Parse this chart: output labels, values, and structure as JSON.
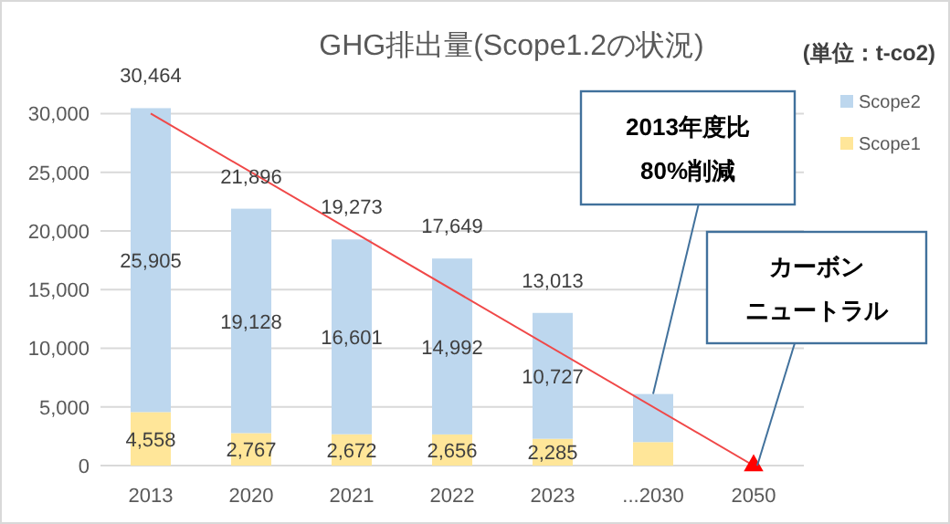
{
  "chart_data": {
    "type": "bar",
    "stacked": true,
    "title": "GHG排出量(Scope1.2の状況)",
    "categories": [
      "2013",
      "2020",
      "2021",
      "2022",
      "2023",
      "...2030",
      "2050"
    ],
    "series": [
      {
        "name": "Scope1",
        "color": "#ffe699",
        "values": [
          4558,
          2767,
          2672,
          2656,
          2285,
          2000,
          null
        ],
        "value_labels": [
          "4,558",
          "2,767",
          "2,672",
          "2,656",
          "2,285",
          null,
          null
        ]
      },
      {
        "name": "Scope2",
        "color": "#bdd7ee",
        "values": [
          25905,
          19128,
          16601,
          14992,
          10727,
          4100,
          null
        ],
        "value_labels": [
          "25,905",
          "19,128",
          "16,601",
          "14,992",
          "10,727",
          null,
          null
        ]
      },
      {
        "type": "line",
        "color": "#f04848",
        "values": [
          30000,
          null,
          null,
          null,
          null,
          null,
          0
        ],
        "marker": "none"
      },
      {
        "type": "scatter",
        "color": "#ff0000",
        "values": [
          null,
          null,
          null,
          null,
          null,
          null,
          0
        ],
        "marker": "triangle"
      }
    ],
    "totals": [
      "30,464",
      "21,896",
      "19,273",
      "17,649",
      "13,013",
      null,
      null
    ],
    "ylim": [
      0,
      30500
    ],
    "yticks": [
      {
        "value": 0,
        "label": "0"
      },
      {
        "value": 5000,
        "label": "5,000"
      },
      {
        "value": 10000,
        "label": "10,000"
      },
      {
        "value": 15000,
        "label": "15,000"
      },
      {
        "value": 20000,
        "label": "20,000"
      },
      {
        "value": 25000,
        "label": "25,000"
      },
      {
        "value": 30000,
        "label": "30,000"
      }
    ],
    "grid": "y",
    "legend": "right",
    "annotations": [
      "(単位：t-co2)",
      {
        "text": "2013年度比80%削減",
        "x": "...2030",
        "y": 6100
      },
      {
        "text": "カーボンニュートラル",
        "x": "2050",
        "y": 0
      }
    ]
  }
}
